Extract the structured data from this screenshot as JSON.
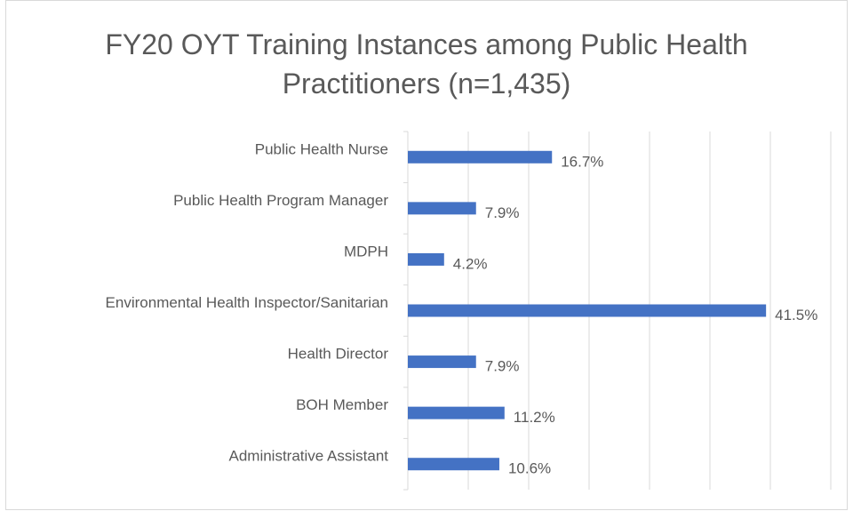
{
  "chart_data": {
    "type": "bar",
    "orientation": "horizontal",
    "title": "FY20 OYT Training Instances among Public Health Practitioners (n=1,435)",
    "categories": [
      "Public Health Nurse",
      "Public Health Program Manager",
      "MDPH",
      "Environmental Health Inspector/Sanitarian",
      "Health Director",
      "BOH Member",
      "Administrative Assistant"
    ],
    "values": [
      16.7,
      7.9,
      4.2,
      41.5,
      7.9,
      11.2,
      10.6
    ],
    "value_labels": [
      "16.7%",
      "7.9%",
      "4.2%",
      "41.5%",
      "7.9%",
      "11.2%",
      "10.6%"
    ],
    "color": "#4472c4",
    "xlim": [
      0,
      49
    ],
    "xticks": [
      0,
      7,
      14,
      21,
      28,
      35,
      42,
      49
    ],
    "grid": true
  }
}
